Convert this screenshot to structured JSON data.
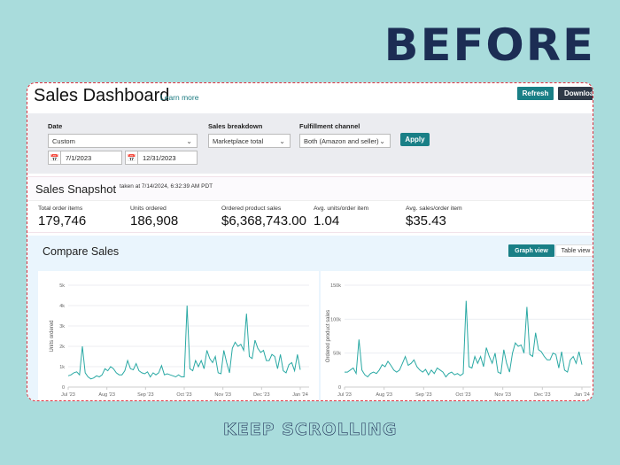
{
  "banner": {
    "top": "BEFORE",
    "bottom": "KEEP SCROLLING"
  },
  "header": {
    "title": "Sales Dashboard",
    "learn_more": "Learn more",
    "refresh": "Refresh",
    "download": "Download"
  },
  "filters": {
    "date_label": "Date",
    "date_value": "Custom",
    "start_date": "7/1/2023",
    "end_date": "12/31/2023",
    "breakdown_label": "Sales breakdown",
    "breakdown_value": "Marketplace total",
    "fulfillment_label": "Fulfillment channel",
    "fulfillment_value": "Both (Amazon and seller)",
    "apply": "Apply"
  },
  "snapshot": {
    "title": "Sales Snapshot",
    "taken": "taken at 7/14/2024, 6:32:39 AM PDT",
    "metrics": [
      {
        "label": "Total order items",
        "value": "179,746"
      },
      {
        "label": "Units ordered",
        "value": "186,908"
      },
      {
        "label": "Ordered product sales",
        "value": "$6,368,743.00"
      },
      {
        "label": "Avg. units/order item",
        "value": "1.04"
      },
      {
        "label": "Avg. sales/order item",
        "value": "$35.43"
      }
    ]
  },
  "compare": {
    "title": "Compare Sales",
    "graph_view": "Graph view",
    "table_view": "Table view"
  },
  "colors": {
    "accent": "#197f86",
    "line": "#2aa9a4",
    "background": "#a9dcdc"
  },
  "chart_data": [
    {
      "type": "line",
      "ylabel": "Units ordered",
      "ylim": [
        0,
        5000
      ],
      "yticks": [
        "0",
        "1k",
        "2k",
        "3k",
        "4k",
        "5k"
      ],
      "xticks": [
        "Jul '23",
        "Aug '23",
        "Sep '23",
        "Oct '23",
        "Nov '23",
        "Dec '23",
        "Jan '24"
      ],
      "grid": true,
      "values": [
        550,
        600,
        700,
        750,
        600,
        2000,
        700,
        500,
        400,
        450,
        550,
        500,
        600,
        900,
        800,
        1000,
        900,
        700,
        600,
        600,
        800,
        1300,
        900,
        850,
        1150,
        800,
        700,
        650,
        750,
        500,
        700,
        600,
        700,
        1050,
        600,
        650,
        600,
        550,
        500,
        600,
        500,
        500,
        4000,
        900,
        800,
        1300,
        1000,
        1300,
        900,
        1800,
        1400,
        1200,
        1500,
        700,
        650,
        1800,
        1200,
        700,
        1900,
        2200,
        2000,
        2100,
        1800,
        3600,
        1500,
        1400,
        2300,
        1900,
        1700,
        1800,
        1300,
        1300,
        1600,
        1500,
        900,
        1600,
        800,
        700,
        1100,
        1200,
        800,
        1600,
        850
      ]
    },
    {
      "type": "line",
      "ylabel": "Ordered product sales",
      "ylim": [
        0,
        150000
      ],
      "yticks": [
        "0",
        "50k",
        "100k",
        "150k"
      ],
      "xticks": [
        "Jul '23",
        "Aug '23",
        "Sep '23",
        "Oct '23",
        "Nov '23",
        "Dec '23",
        "Jan '24"
      ],
      "grid": true,
      "values": [
        22000,
        22000,
        25000,
        28000,
        20000,
        70000,
        25000,
        18000,
        15000,
        20000,
        22000,
        20000,
        25000,
        33000,
        30000,
        38000,
        32000,
        25000,
        22000,
        25000,
        35000,
        45000,
        32000,
        35000,
        40000,
        30000,
        25000,
        22000,
        26000,
        18000,
        25000,
        20000,
        28000,
        25000,
        22000,
        15000,
        20000,
        22000,
        18000,
        20000,
        17000,
        20000,
        127000,
        30000,
        28000,
        45000,
        35000,
        45000,
        30000,
        58000,
        45000,
        35000,
        50000,
        22000,
        20000,
        55000,
        35000,
        22000,
        50000,
        65000,
        60000,
        62000,
        50000,
        118000,
        48000,
        45000,
        80000,
        55000,
        52000,
        45000,
        40000,
        40000,
        50000,
        48000,
        28000,
        52000,
        25000,
        22000,
        40000,
        45000,
        35000,
        52000,
        33000
      ]
    }
  ]
}
